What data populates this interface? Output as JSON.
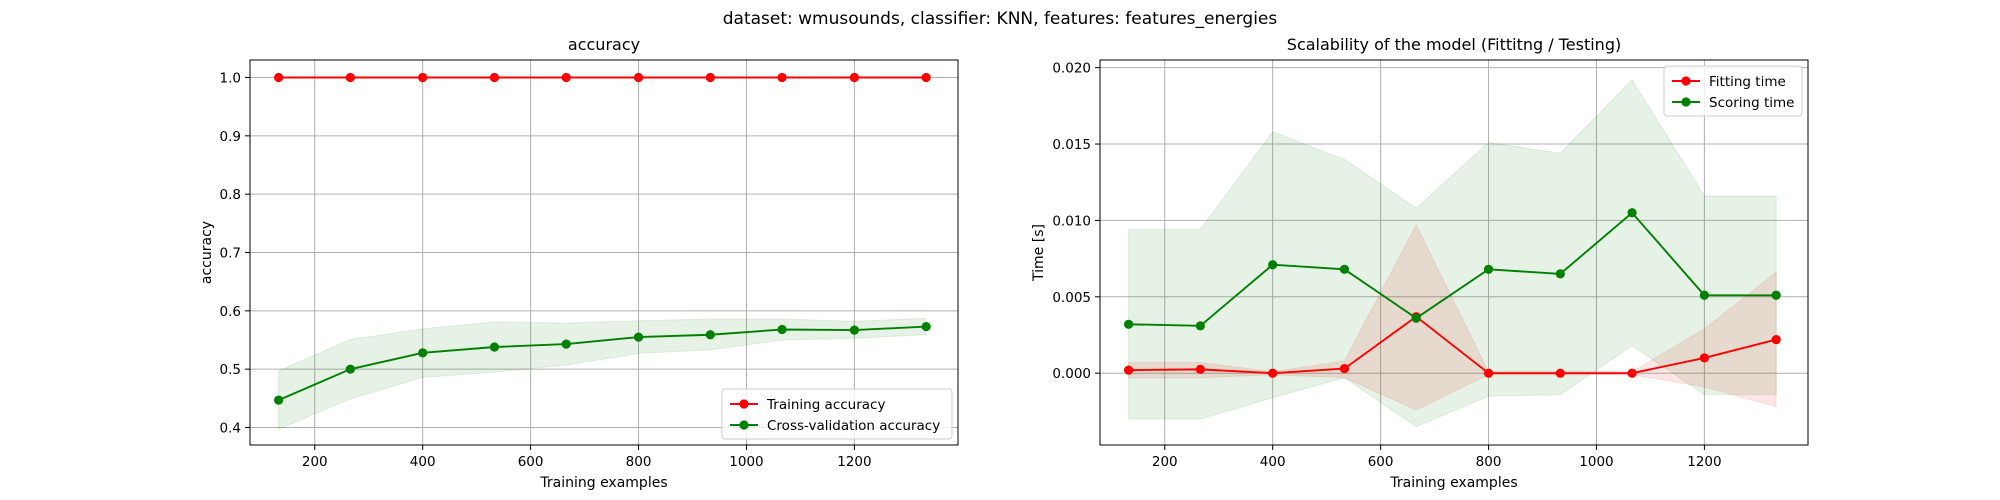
{
  "figure": {
    "suptitle": "dataset: wmusounds, classifier: KNN, features: features_energies"
  },
  "chart_data": [
    {
      "type": "line",
      "title": "accuracy",
      "xlabel": "Training examples",
      "ylabel": "accuracy",
      "xlim": [
        80,
        1392
      ],
      "ylim": [
        0.37,
        1.03
      ],
      "xticks": [
        200,
        400,
        600,
        800,
        1000,
        1200
      ],
      "yticks": [
        0.4,
        0.5,
        0.6,
        0.7,
        0.8,
        0.9,
        1.0
      ],
      "ytick_decimals": 1,
      "grid": true,
      "legend_position": "lower-right",
      "x": [
        133,
        266,
        400,
        533,
        666,
        800,
        933,
        1066,
        1200,
        1333
      ],
      "series": [
        {
          "name": "Training accuracy",
          "color": "#ff0000",
          "values": [
            1.0,
            1.0,
            1.0,
            1.0,
            1.0,
            1.0,
            1.0,
            1.0,
            1.0,
            1.0
          ],
          "band_lower": [
            1.0,
            1.0,
            1.0,
            1.0,
            1.0,
            1.0,
            1.0,
            1.0,
            1.0,
            1.0
          ],
          "band_upper": [
            1.0,
            1.0,
            1.0,
            1.0,
            1.0,
            1.0,
            1.0,
            1.0,
            1.0,
            1.0
          ]
        },
        {
          "name": "Cross-validation accuracy",
          "color": "#008000",
          "values": [
            0.447,
            0.5,
            0.528,
            0.538,
            0.543,
            0.555,
            0.559,
            0.568,
            0.567,
            0.573
          ],
          "band_lower": [
            0.397,
            0.449,
            0.486,
            0.495,
            0.507,
            0.527,
            0.533,
            0.55,
            0.553,
            0.559
          ],
          "band_upper": [
            0.497,
            0.551,
            0.569,
            0.581,
            0.579,
            0.583,
            0.586,
            0.586,
            0.582,
            0.587
          ]
        }
      ]
    },
    {
      "type": "line",
      "title": "Scalability of the model (Fittitng / Testing)",
      "xlabel": "Training examples",
      "ylabel": "Time [s]",
      "xlim": [
        80,
        1392
      ],
      "ylim": [
        -0.0047,
        0.0205
      ],
      "xticks": [
        200,
        400,
        600,
        800,
        1000,
        1200
      ],
      "yticks": [
        0.0,
        0.005,
        0.01,
        0.015,
        0.02
      ],
      "ytick_decimals": 3,
      "grid": true,
      "legend_position": "top-right",
      "x": [
        133,
        266,
        400,
        533,
        666,
        800,
        933,
        1066,
        1200,
        1333
      ],
      "series": [
        {
          "name": "Fitting time",
          "color": "#ff0000",
          "values": [
            0.0002,
            0.00025,
            0.0,
            0.0003,
            0.0037,
            0.0,
            0.0,
            0.0,
            0.001,
            0.0022
          ],
          "band_lower": [
            -0.0003,
            -0.0003,
            -0.0001,
            -0.0003,
            -0.0024,
            -0.0001,
            -0.0001,
            -0.0001,
            -0.0009,
            -0.0022
          ],
          "band_upper": [
            0.0007,
            0.0007,
            0.0001,
            0.0008,
            0.0097,
            0.0001,
            0.0001,
            0.0001,
            0.0029,
            0.0066
          ]
        },
        {
          "name": "Scoring time",
          "color": "#008000",
          "values": [
            0.0032,
            0.0031,
            0.0071,
            0.0068,
            0.0036,
            0.0068,
            0.0065,
            0.0105,
            0.0051,
            0.0051
          ],
          "band_lower": [
            -0.003,
            -0.003,
            -0.0016,
            -0.0003,
            -0.0035,
            -0.0015,
            -0.0014,
            0.0018,
            -0.0014,
            -0.0014
          ],
          "band_upper": [
            0.0094,
            0.0094,
            0.0158,
            0.014,
            0.0108,
            0.0151,
            0.0144,
            0.0192,
            0.0116,
            0.0116
          ]
        }
      ]
    }
  ]
}
